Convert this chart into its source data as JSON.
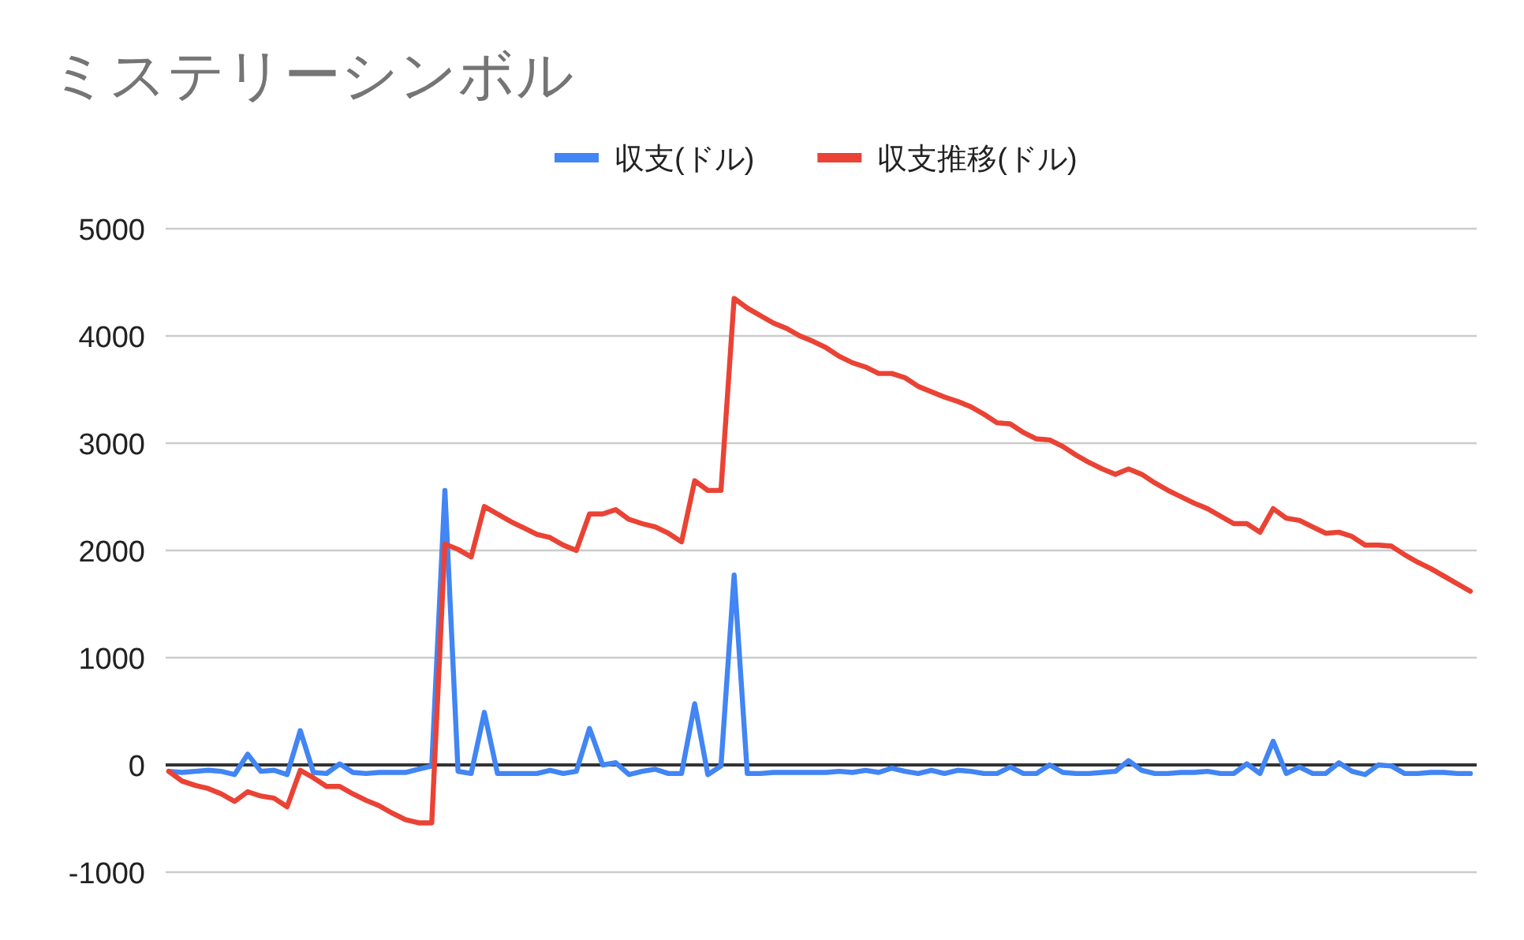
{
  "chart_data": {
    "type": "line",
    "title": "ミステリーシンボル",
    "categories": [
      null,
      null,
      null,
      null,
      null,
      null,
      null,
      null,
      null,
      null,
      null,
      null,
      null,
      null,
      null,
      null,
      null,
      null,
      null,
      null,
      null,
      null,
      null,
      null,
      null,
      null,
      null,
      null,
      null,
      null,
      null,
      null,
      null,
      null,
      null,
      null,
      null,
      null,
      null,
      null,
      null,
      null,
      null,
      null,
      null,
      null,
      null,
      null,
      null,
      null,
      null,
      null,
      null,
      null,
      null,
      null,
      null,
      null,
      null,
      null,
      null,
      null,
      null,
      null,
      null,
      null,
      null,
      null,
      null,
      null,
      null,
      null,
      null,
      null,
      null,
      null,
      null,
      null,
      null,
      null,
      null,
      null,
      null,
      null,
      null,
      null,
      null,
      null,
      null,
      null,
      null,
      null,
      null,
      null,
      null,
      null,
      null,
      null,
      null,
      null
    ],
    "series": [
      {
        "name": "収支(ドル)",
        "color": "#4285f4",
        "values": [
          -60,
          -70,
          -60,
          -50,
          -60,
          -90,
          100,
          -60,
          -50,
          -90,
          320,
          -70,
          -80,
          10,
          -70,
          -80,
          -70,
          -70,
          -70,
          -40,
          -10,
          2560,
          -60,
          -80,
          490,
          -80,
          -80,
          -80,
          -80,
          -50,
          -80,
          -60,
          340,
          0,
          20,
          -90,
          -60,
          -40,
          -80,
          -80,
          570,
          -90,
          -10,
          1770,
          -80,
          -80,
          -70,
          -70,
          -70,
          -70,
          -70,
          -60,
          -70,
          -50,
          -70,
          -30,
          -60,
          -80,
          -50,
          -80,
          -50,
          -60,
          -80,
          -80,
          -20,
          -80,
          -80,
          0,
          -70,
          -80,
          -80,
          -70,
          -60,
          40,
          -50,
          -80,
          -80,
          -70,
          -70,
          -60,
          -80,
          -80,
          10,
          -80,
          220,
          -80,
          -20,
          -80,
          -80,
          20,
          -60,
          -90,
          0,
          -10,
          -80,
          -80,
          -70,
          -70,
          -80,
          -80
        ]
      },
      {
        "name": "収支推移(ドル)",
        "color": "#ea4335",
        "values": [
          -60,
          -150,
          -190,
          -220,
          -270,
          -340,
          -250,
          -290,
          -310,
          -390,
          -50,
          -120,
          -200,
          -200,
          -270,
          -330,
          -380,
          -450,
          -510,
          -540,
          -540,
          2060,
          2010,
          1940,
          2410,
          2340,
          2270,
          2210,
          2150,
          2120,
          2050,
          2000,
          2340,
          2340,
          2380,
          2290,
          2250,
          2220,
          2160,
          2080,
          2650,
          2560,
          2560,
          4350,
          4260,
          4190,
          4120,
          4070,
          4000,
          3950,
          3890,
          3810,
          3750,
          3710,
          3650,
          3650,
          3610,
          3530,
          3480,
          3430,
          3390,
          3340,
          3270,
          3190,
          3180,
          3100,
          3040,
          3030,
          2970,
          2890,
          2820,
          2760,
          2710,
          2760,
          2710,
          2630,
          2560,
          2500,
          2440,
          2390,
          2320,
          2250,
          2250,
          2170,
          2390,
          2300,
          2280,
          2220,
          2160,
          2170,
          2130,
          2050,
          2050,
          2040,
          1960,
          1890,
          1830,
          1760,
          1690,
          1620
        ]
      }
    ],
    "ylim": [
      -1000,
      5000
    ],
    "yticks": [
      -1000,
      0,
      1000,
      2000,
      3000,
      4000,
      5000
    ],
    "grid": "y",
    "legend": "top"
  }
}
